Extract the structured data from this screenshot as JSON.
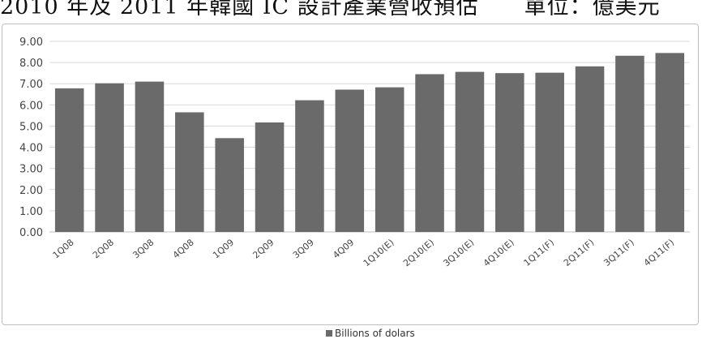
{
  "header": {
    "text": "2010 年及 2011 年韓國 IC 設計產業營收預估　　單位：億美元"
  },
  "chart_data": {
    "type": "bar",
    "categories": [
      "1Q08",
      "2Q08",
      "3Q08",
      "4Q08",
      "1Q09",
      "2Q09",
      "3Q09",
      "4Q09",
      "1Q10(E)",
      "2Q10(E)",
      "3Q10(E)",
      "4Q10(E)",
      "1Q11(F)",
      "2Q11(F)",
      "3Q11(F)",
      "4Q11(F)"
    ],
    "series": [
      {
        "name": "Billions of dolars",
        "values": [
          6.78,
          7.02,
          7.1,
          5.65,
          4.43,
          5.17,
          6.22,
          6.72,
          6.83,
          7.45,
          7.56,
          7.5,
          7.52,
          7.82,
          8.32,
          8.45
        ]
      }
    ],
    "yticks": [
      "0.00",
      "1.00",
      "2.00",
      "3.00",
      "4.00",
      "5.00",
      "6.00",
      "7.00",
      "8.00",
      "9.00"
    ],
    "ylim": [
      0,
      9
    ],
    "grid": true,
    "legend_position": "bottom",
    "bar_color": "#6a6a6a",
    "grid_color": "#d9d9d9"
  }
}
